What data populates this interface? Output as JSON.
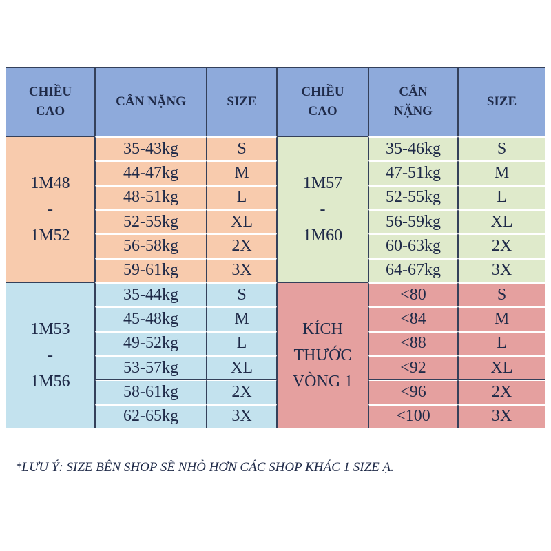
{
  "header": {
    "cells": [
      "CHIỀU CAO",
      "CÂN NẶNG",
      "SIZE",
      "CHIỀU CAO",
      "CÂN NẶNG",
      "SIZE"
    ]
  },
  "blocks": [
    {
      "label": [
        "1M48",
        "-",
        "1M52"
      ],
      "rows": [
        [
          "35-43kg",
          "S"
        ],
        [
          "44-47kg",
          "M"
        ],
        [
          "48-51kg",
          "L"
        ],
        [
          "52-55kg",
          "XL"
        ],
        [
          "56-58kg",
          "2X"
        ],
        [
          "59-61kg",
          "3X"
        ]
      ]
    },
    {
      "label": [
        "1M57",
        "-",
        "1M60"
      ],
      "rows": [
        [
          "35-46kg",
          "S"
        ],
        [
          "47-51kg",
          "M"
        ],
        [
          "52-55kg",
          "L"
        ],
        [
          "56-59kg",
          "XL"
        ],
        [
          "60-63kg",
          "2X"
        ],
        [
          "64-67kg",
          "3X"
        ]
      ]
    },
    {
      "label": [
        "1M53",
        "-",
        "1M56"
      ],
      "rows": [
        [
          "35-44kg",
          "S"
        ],
        [
          "45-48kg",
          "M"
        ],
        [
          "49-52kg",
          "L"
        ],
        [
          "53-57kg",
          "XL"
        ],
        [
          "58-61kg",
          "2X"
        ],
        [
          "62-65kg",
          "3X"
        ]
      ]
    },
    {
      "label": [
        "KÍCH",
        "THƯỚC",
        "VÒNG 1"
      ],
      "rows": [
        [
          "<80",
          "S"
        ],
        [
          "<84",
          "M"
        ],
        [
          "<88",
          "L"
        ],
        [
          "<92",
          "XL"
        ],
        [
          "<96",
          "2X"
        ],
        [
          "<100",
          "3X"
        ]
      ]
    }
  ],
  "note": "*LƯU Ý: SIZE BÊN SHOP SẼ NHỎ HƠN CÁC SHOP KHÁC 1 SIZE Ạ."
}
